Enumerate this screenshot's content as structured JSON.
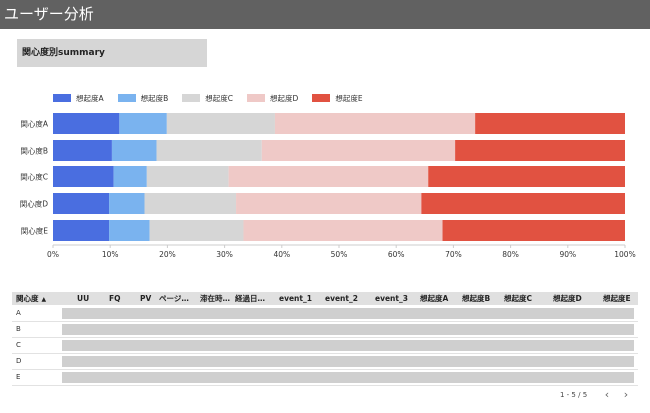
{
  "header": {
    "title": "ユーザー分析"
  },
  "section": {
    "title": "関心度別summary"
  },
  "chart_data": {
    "type": "bar",
    "orientation": "horizontal",
    "stacked": true,
    "normalized": true,
    "categories": [
      "関心度A",
      "関心度B",
      "関心度C",
      "関心度D",
      "関心度E"
    ],
    "series": [
      {
        "name": "想起度A",
        "color": "#4a6ee0",
        "values": [
          11.6,
          10.3,
          10.6,
          9.8,
          9.8
        ]
      },
      {
        "name": "想起度B",
        "color": "#7ab3ef",
        "values": [
          8.3,
          7.8,
          5.8,
          6.2,
          7.1
        ]
      },
      {
        "name": "想起度C",
        "color": "#d6d6d6",
        "values": [
          18.9,
          18.4,
          14.3,
          16.0,
          16.4
        ]
      },
      {
        "name": "想起度D",
        "color": "#efc9c7",
        "values": [
          35.0,
          33.8,
          34.9,
          32.4,
          34.8
        ]
      },
      {
        "name": "想起度E",
        "color": "#e15241",
        "values": [
          26.2,
          29.7,
          34.4,
          35.6,
          31.9
        ]
      }
    ],
    "x_ticks": [
      "0%",
      "10%",
      "20%",
      "30%",
      "40%",
      "50%",
      "60%",
      "70%",
      "80%",
      "90%",
      "100%"
    ],
    "xlim": [
      0,
      100
    ],
    "legend": "top-left",
    "grid": false
  },
  "table": {
    "columns": [
      "関心度",
      "UU",
      "FQ",
      "PV",
      "ページ…",
      "滞在時…",
      "経過日…",
      "event_1",
      "event_2",
      "event_3",
      "想起度A",
      "想起度B",
      "想起度C",
      "想起度D",
      "想起度E"
    ],
    "sort_indicator": "▲",
    "rows": [
      "A",
      "B",
      "C",
      "D",
      "E"
    ]
  },
  "pager": {
    "label": "1 - 5 / 5",
    "prev": "‹",
    "next": "›"
  }
}
